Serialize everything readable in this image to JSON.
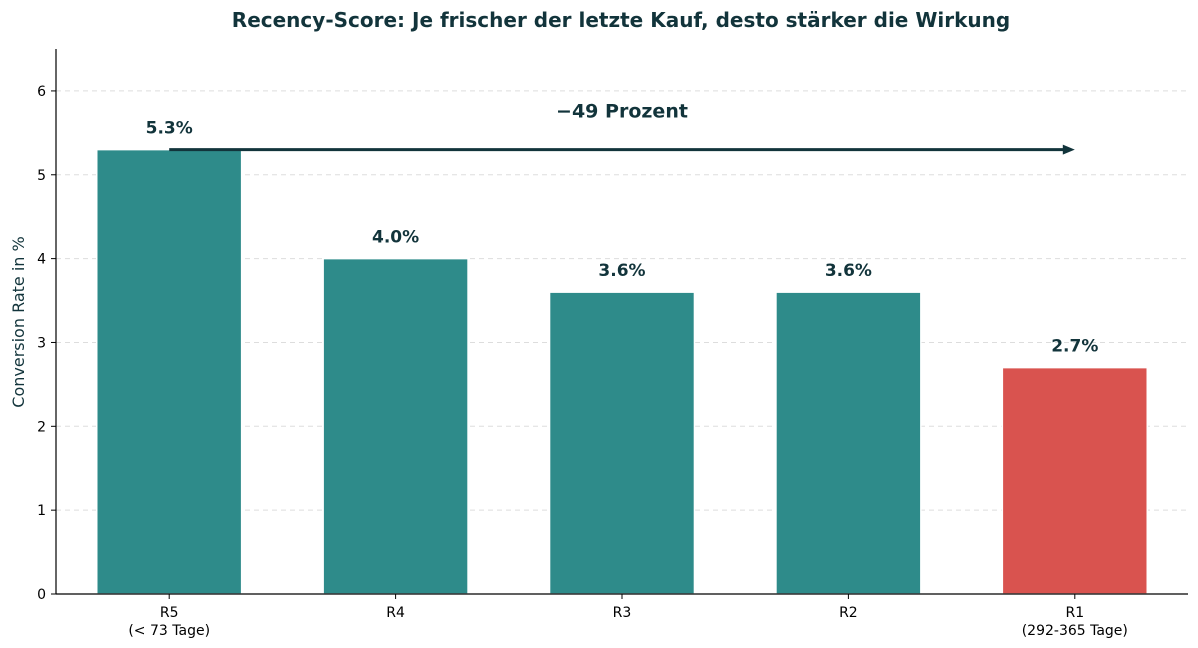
{
  "chart_data": {
    "type": "bar",
    "title": "Recency-Score: Je frischer der letzte Kauf, desto stärker die Wirkung",
    "xlabel": "",
    "ylabel": "Conversion Rate in %",
    "ylim": [
      0,
      6.5
    ],
    "yticks": [
      0,
      1,
      2,
      3,
      4,
      5,
      6
    ],
    "grid": true,
    "categories": [
      {
        "label": "R5",
        "sublabel": "(< 73 Tage)"
      },
      {
        "label": "R4",
        "sublabel": ""
      },
      {
        "label": "R3",
        "sublabel": ""
      },
      {
        "label": "R2",
        "sublabel": ""
      },
      {
        "label": "R1",
        "sublabel": "(292-365 Tage)"
      }
    ],
    "values": [
      5.3,
      4.0,
      3.6,
      3.6,
      2.7
    ],
    "data_labels": [
      "5.3%",
      "4.0%",
      "3.6%",
      "3.6%",
      "2.7%"
    ],
    "bar_colors": [
      "#2e8b8a",
      "#2e8b8a",
      "#2e8b8a",
      "#2e8b8a",
      "#d9534f"
    ],
    "annotation": {
      "text": "−49 Prozent",
      "from_category": 0,
      "to_category": 4,
      "at_value": 5.3
    },
    "colors": {
      "bar": "#2e8b8a",
      "highlight": "#d9534f",
      "text": "#12343b",
      "grid": "#dddddd"
    }
  }
}
